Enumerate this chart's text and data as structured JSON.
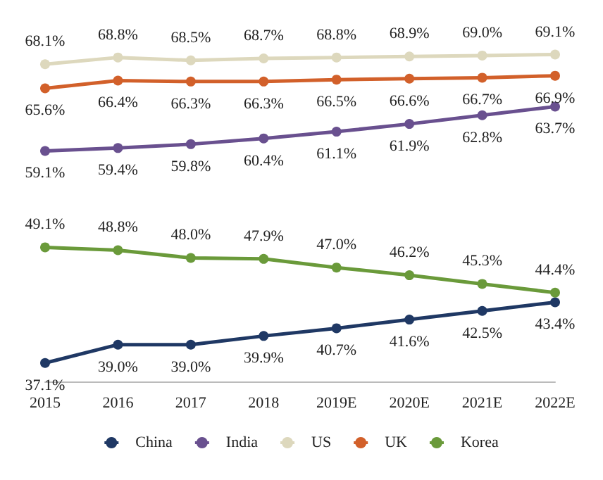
{
  "chart_data": {
    "type": "line",
    "categories": [
      "2015",
      "2016",
      "2017",
      "2018",
      "2019E",
      "2020E",
      "2021E",
      "2022E"
    ],
    "series": [
      {
        "name": "China",
        "color": "#1f3864",
        "values": [
          37.1,
          39.0,
          39.0,
          39.9,
          40.7,
          41.6,
          42.5,
          43.4
        ],
        "value_labels": [
          "37.1%",
          "39.0%",
          "39.0%",
          "39.9%",
          "40.7%",
          "41.6%",
          "42.5%",
          "43.4%"
        ]
      },
      {
        "name": "India",
        "color": "#69508f",
        "values": [
          59.1,
          59.4,
          59.8,
          60.4,
          61.1,
          61.9,
          62.8,
          63.7
        ],
        "value_labels": [
          "59.1%",
          "59.4%",
          "59.8%",
          "60.4%",
          "61.1%",
          "61.9%",
          "62.8%",
          "63.7%"
        ]
      },
      {
        "name": "US",
        "color": "#ddd8bd",
        "values": [
          68.1,
          68.8,
          68.5,
          68.7,
          68.8,
          68.9,
          69.0,
          69.1
        ],
        "value_labels": [
          "68.1%",
          "68.8%",
          "68.5%",
          "68.7%",
          "68.8%",
          "68.9%",
          "69.0%",
          "69.1%"
        ]
      },
      {
        "name": "UK",
        "color": "#d2602a",
        "values": [
          65.6,
          66.4,
          66.3,
          66.3,
          66.5,
          66.6,
          66.7,
          66.9
        ],
        "value_labels": [
          "65.6%",
          "66.4%",
          "66.3%",
          "66.3%",
          "66.5%",
          "66.6%",
          "66.7%",
          "66.9%"
        ]
      },
      {
        "name": "Korea",
        "color": "#6a9a3a",
        "values": [
          49.1,
          48.8,
          48.0,
          47.9,
          47.0,
          46.2,
          45.3,
          44.4
        ],
        "value_labels": [
          "49.1%",
          "48.8%",
          "48.0%",
          "47.9%",
          "47.0%",
          "46.2%",
          "45.3%",
          "44.4%"
        ]
      }
    ],
    "legend": "bottom",
    "grid": false,
    "marker": "circle",
    "line_style": "solid"
  }
}
